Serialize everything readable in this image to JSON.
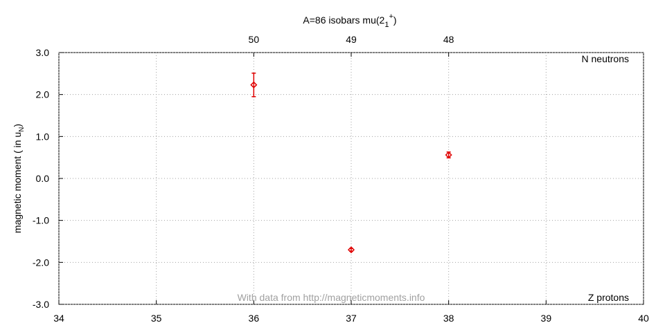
{
  "chart_data": {
    "type": "scatter",
    "title": {
      "main": "A=86 isobars mu(2",
      "sub": "1",
      "sup": "+",
      "close": ")"
    },
    "y_label": {
      "main": "magnetic moment ( in u",
      "sub": "N",
      "close": ")"
    },
    "x_label": "Z protons",
    "x2_label": "N neutrons",
    "source_note": "With data from http://magneticmoments.info",
    "series": [
      {
        "color": "#e00000",
        "x": [
          36,
          37,
          38
        ],
        "values": [
          2.23,
          -1.7,
          0.56
        ],
        "errors": [
          0.28,
          0.03,
          0.07
        ]
      }
    ],
    "xlim": [
      34,
      40
    ],
    "xticks": [
      34,
      35,
      36,
      37,
      38,
      39,
      40
    ],
    "x2ticks": [
      {
        "value": 36,
        "label": "50"
      },
      {
        "value": 37,
        "label": "49"
      },
      {
        "value": 38,
        "label": "48"
      }
    ],
    "ylim": [
      -3,
      3
    ],
    "yticks": [
      {
        "value": -3,
        "label": "-3.0"
      },
      {
        "value": -2,
        "label": "-2.0"
      },
      {
        "value": -1,
        "label": "-1.0"
      },
      {
        "value": 0,
        "label": "0.0"
      },
      {
        "value": 1,
        "label": "1.0"
      },
      {
        "value": 2,
        "label": "2.0"
      },
      {
        "value": 3,
        "label": "3.0"
      }
    ],
    "grid": true
  }
}
